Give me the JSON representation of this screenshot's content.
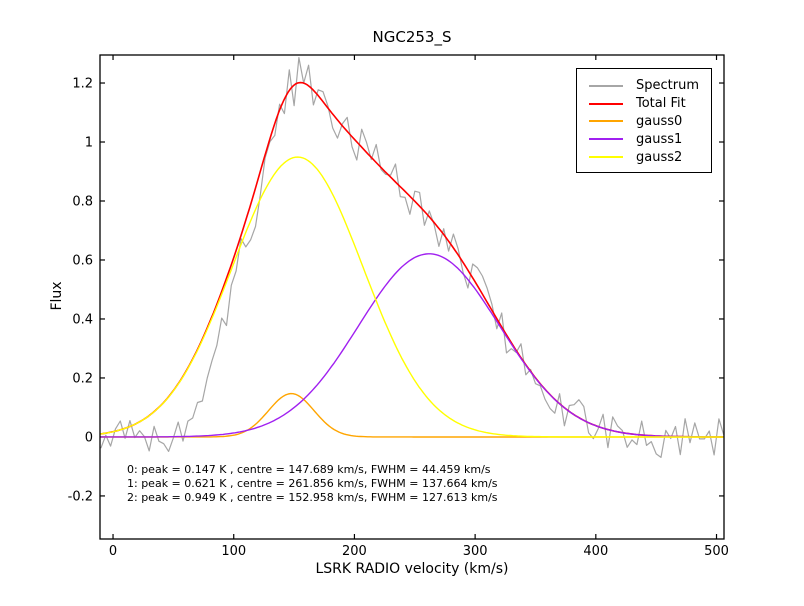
{
  "title": "NGC253_S",
  "axes": {
    "xlabel": "LSRK RADIO velocity (km/s)",
    "ylabel": "Flux"
  },
  "legend": {
    "entries": [
      {
        "label": "Spectrum",
        "color": "#a6a6a6"
      },
      {
        "label": "Total Fit",
        "color": "#ff0000"
      },
      {
        "label": "gauss0",
        "color": "#ffa500"
      },
      {
        "label": "gauss1",
        "color": "#a020f0"
      },
      {
        "label": "gauss2",
        "color": "#ffff00"
      }
    ]
  },
  "annotation": {
    "lines": [
      "0: peak = 0.147 K , centre = 147.689 km/s, FWHM = 44.459 km/s",
      "1: peak = 0.621 K , centre = 261.856 km/s, FWHM = 137.664 km/s",
      "2: peak = 0.949 K , centre = 152.958 km/s, FWHM = 127.613 km/s"
    ]
  },
  "chart_data": {
    "type": "line",
    "title": "NGC253_S",
    "xlabel": "LSRK RADIO velocity (km/s)",
    "ylabel": "Flux",
    "xlim": [
      -10.8,
      506.2
    ],
    "ylim": [
      -0.346,
      1.295
    ],
    "xticks": [
      0,
      100,
      200,
      300,
      400,
      500
    ],
    "xtick_labels": [
      "0",
      "100",
      "200",
      "300",
      "400",
      "500"
    ],
    "yticks": [
      -0.2,
      0,
      0.2,
      0.4,
      0.6,
      0.8,
      1,
      1.2
    ],
    "ytick_labels": [
      "-0.2",
      "0",
      "0.2",
      "0.4",
      "0.6",
      "0.8",
      "1",
      "1.2"
    ],
    "grid": false,
    "legend_position": "upper right",
    "fit_parameters": [
      {
        "component": 0,
        "peak_K": 0.147,
        "centre_kms": 147.689,
        "fwhm_kms": 44.459
      },
      {
        "component": 1,
        "peak_K": 0.621,
        "centre_kms": 261.856,
        "fwhm_kms": 137.664
      },
      {
        "component": 2,
        "peak_K": 0.949,
        "centre_kms": 152.958,
        "fwhm_kms": 127.613
      }
    ],
    "series": [
      {
        "name": "Spectrum",
        "type": "noisy-line",
        "color": "#a6a6a6",
        "x_start": -10,
        "x_step": 4,
        "noise_about_total_fit": [
          -0.047,
          -0.007,
          -0.047,
          0.007,
          0.03,
          -0.034,
          0.02,
          -0.045,
          -0.03,
          -0.06,
          -0.12,
          -0.05,
          -0.115,
          -0.14,
          -0.185,
          -0.16,
          -0.13,
          -0.22,
          -0.18,
          -0.2,
          -0.18,
          -0.21,
          -0.17,
          -0.15,
          -0.14,
          -0.09,
          -0.16,
          -0.07,
          -0.07,
          -0.01,
          -0.09,
          -0.12,
          -0.13,
          -0.08,
          -0.01,
          -0.01,
          -0.04,
          0.02,
          -0.05,
          0.07,
          -0.07,
          0.085,
          0.0,
          0.07,
          -0.05,
          0.02,
          0.034,
          0.007,
          -0.047,
          -0.061,
          0.007,
          0.047,
          -0.034,
          -0.061,
          0.061,
          0.034,
          -0.007,
          0.061,
          -0.007,
          -0.007,
          0.007,
          0.061,
          -0.034,
          -0.02,
          -0.061,
          0.034,
          0.047,
          -0.047,
          0.02,
          -0.007,
          -0.061,
          0.02,
          -0.034,
          0.047,
          0.02,
          -0.034,
          -0.061,
          0.047,
          0.061,
          0.061,
          0.047,
          0.02,
          -0.034,
          0.047,
          -0.061,
          -0.02,
          -0.007,
          0.047,
          -0.034,
          0.007,
          -0.02,
          -0.007,
          -0.034,
          -0.047,
          -0.047,
          0.034,
          -0.061,
          0.02,
          0.034,
          0.061,
          0.047,
          -0.034,
          -0.047,
          -0.007,
          0.047,
          -0.061,
          0.047,
          0.02,
          0.007,
          -0.047,
          -0.02,
          -0.034,
          0.047,
          -0.034,
          -0.02,
          -0.061,
          -0.072,
          0.02,
          -0.007,
          0.034,
          -0.061,
          0.061,
          -0.02,
          0.047,
          -0.007,
          -0.007,
          0.02,
          -0.061,
          0.061,
          0.007
        ]
      },
      {
        "name": "Total Fit",
        "type": "sum-of-gaussians",
        "color": "#ff0000"
      },
      {
        "name": "gauss0",
        "type": "gaussian",
        "color": "#ffa500",
        "peak": 0.147,
        "centre": 147.689,
        "fwhm": 44.459
      },
      {
        "name": "gauss1",
        "type": "gaussian",
        "color": "#a020f0",
        "peak": 0.621,
        "centre": 261.856,
        "fwhm": 137.664
      },
      {
        "name": "gauss2",
        "type": "gaussian",
        "color": "#ffff00",
        "peak": 0.949,
        "centre": 152.958,
        "fwhm": 127.613
      }
    ]
  }
}
